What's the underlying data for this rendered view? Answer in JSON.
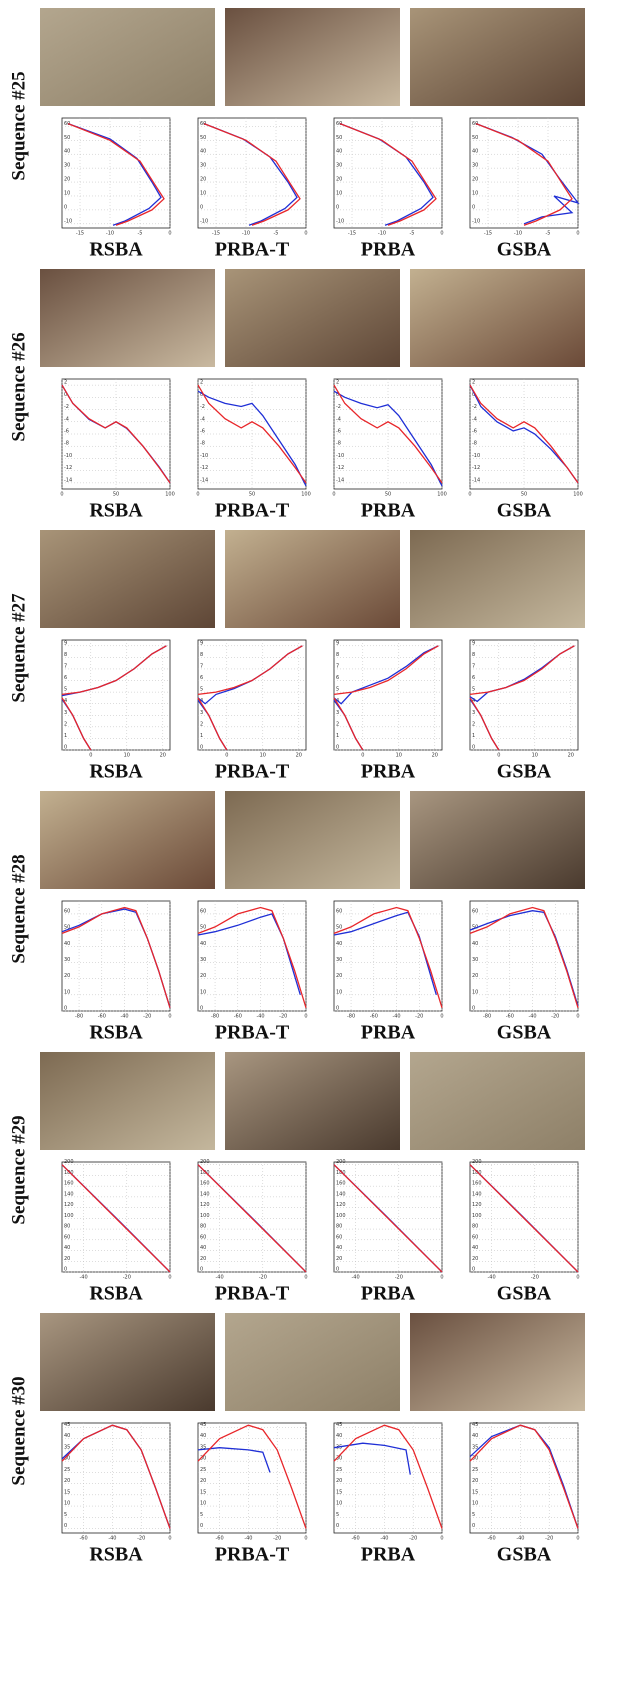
{
  "truth_color": "#e8262a",
  "estimate_color": "#1f2fd6",
  "sequences": [
    {
      "label": "Sequence #25",
      "xlim": [
        -18,
        0
      ],
      "ylim": [
        -13,
        66
      ],
      "xticks": [
        -15,
        -10,
        -5,
        0
      ],
      "yticks": [
        -10,
        0,
        10,
        20,
        30,
        40,
        50,
        60
      ],
      "truth": {
        "x": [
          -17,
          -10,
          -5,
          -2.5,
          -1,
          -3,
          -7,
          -9
        ],
        "y": [
          62,
          50,
          35,
          18,
          8,
          0,
          -8,
          -11
        ]
      },
      "plots": [
        {
          "method": "RSBA",
          "estimate": {
            "x": [
              -17,
              -10,
              -5.5,
              -3,
              -1.5,
              -3.5,
              -7.5,
              -9.5
            ],
            "y": [
              62,
              51,
              37,
              20,
              9,
              1,
              -8,
              -11
            ]
          }
        },
        {
          "method": "PRBA-T",
          "estimate": {
            "x": [
              -17,
              -10.5,
              -6,
              -3,
              -1.5,
              -3.5,
              -7.5,
              -9.5
            ],
            "y": [
              62,
              51,
              38,
              20,
              9,
              1,
              -8,
              -11
            ]
          }
        },
        {
          "method": "PRBA",
          "estimate": {
            "x": [
              -17,
              -10.5,
              -6,
              -3,
              -1.5,
              -3.5,
              -7.5,
              -9.5
            ],
            "y": [
              62,
              51,
              38,
              20,
              9,
              1,
              -8,
              -11
            ]
          }
        },
        {
          "method": "GSBA",
          "estimate": {
            "x": [
              -17,
              -11,
              -6,
              -3,
              0,
              -4,
              -1,
              -6,
              -9
            ],
            "y": [
              62,
              52,
              40,
              22,
              5,
              10,
              -2,
              -5,
              -10
            ]
          }
        }
      ]
    },
    {
      "label": "Sequence #26",
      "xlim": [
        0,
        100
      ],
      "ylim": [
        -15,
        3
      ],
      "xticks": [
        0,
        50,
        100
      ],
      "yticks": [
        -14,
        -12,
        -10,
        -8,
        -6,
        -4,
        -2,
        0,
        2
      ],
      "truth": {
        "x": [
          0,
          10,
          25,
          40,
          50,
          60,
          75,
          90,
          100
        ],
        "y": [
          2,
          -1,
          -3.5,
          -5,
          -4,
          -5,
          -8,
          -11.5,
          -14
        ]
      },
      "plots": [
        {
          "method": "RSBA",
          "estimate": {
            "x": [
              0,
              10,
              25,
              40,
              50,
              60,
              75,
              90,
              100
            ],
            "y": [
              2,
              -1,
              -3.6,
              -5,
              -4,
              -5.1,
              -8,
              -11.4,
              -14
            ]
          }
        },
        {
          "method": "PRBA-T",
          "estimate": {
            "x": [
              0,
              10,
              25,
              40,
              50,
              60,
              75,
              90,
              100
            ],
            "y": [
              1,
              0,
              -1,
              -1.5,
              -1,
              -3,
              -7,
              -11,
              -14.5
            ]
          }
        },
        {
          "method": "PRBA",
          "estimate": {
            "x": [
              0,
              10,
              25,
              40,
              50,
              60,
              75,
              90,
              100
            ],
            "y": [
              1,
              0,
              -1,
              -1.7,
              -1.2,
              -3,
              -7,
              -11,
              -14.5
            ]
          }
        },
        {
          "method": "GSBA",
          "estimate": {
            "x": [
              0,
              10,
              25,
              40,
              50,
              60,
              75,
              90,
              100
            ],
            "y": [
              2,
              -1.5,
              -4,
              -5.5,
              -5,
              -6,
              -8.5,
              -11.5,
              -14
            ]
          }
        }
      ]
    },
    {
      "label": "Sequence #27",
      "xlim": [
        -8,
        22
      ],
      "ylim": [
        0,
        9.5
      ],
      "xticks": [
        0,
        10,
        20
      ],
      "yticks": [
        0,
        1,
        2,
        3,
        4,
        5,
        6,
        7,
        8,
        9
      ],
      "truth": {
        "x": [
          -8,
          -3,
          2,
          7,
          12,
          17,
          21,
          null,
          -8,
          -5,
          -2,
          0
        ],
        "y": [
          4.8,
          5,
          5.4,
          6,
          7,
          8.3,
          9,
          null,
          4.5,
          3,
          1,
          0
        ]
      },
      "plots": [
        {
          "method": "RSBA",
          "estimate": {
            "x": [
              -8,
              -3,
              2,
              7,
              12,
              17,
              21,
              null,
              -8,
              -5,
              -2,
              0
            ],
            "y": [
              4.7,
              5,
              5.4,
              6,
              7,
              8.3,
              9,
              null,
              4.4,
              3,
              1,
              0
            ]
          }
        },
        {
          "method": "PRBA-T",
          "estimate": {
            "x": [
              -8,
              -6,
              -3,
              2,
              7,
              12,
              17,
              21,
              null,
              -8,
              -5,
              -2,
              0
            ],
            "y": [
              4.5,
              4,
              4.8,
              5.3,
              6,
              7,
              8.3,
              9,
              null,
              4.3,
              3,
              1,
              0
            ]
          }
        },
        {
          "method": "PRBA",
          "estimate": {
            "x": [
              -8,
              -6,
              -3,
              2,
              7,
              12,
              17,
              21,
              null,
              -8,
              -5,
              -2,
              0
            ],
            "y": [
              4.5,
              4,
              5,
              5.6,
              6.2,
              7.2,
              8.4,
              9,
              null,
              4.3,
              3,
              1,
              0
            ]
          }
        },
        {
          "method": "GSBA",
          "estimate": {
            "x": [
              -8,
              -6,
              -3,
              2,
              7,
              12,
              17,
              21,
              null,
              -8,
              -5,
              -2,
              0
            ],
            "y": [
              4.6,
              4.2,
              5,
              5.4,
              6.1,
              7.1,
              8.3,
              9,
              null,
              4.4,
              3,
              1,
              0
            ]
          }
        }
      ]
    },
    {
      "label": "Sequence #28",
      "xlim": [
        -95,
        0
      ],
      "ylim": [
        0,
        68
      ],
      "xticks": [
        -80,
        -60,
        -40,
        -20,
        0
      ],
      "yticks": [
        0,
        10,
        20,
        30,
        40,
        50,
        60
      ],
      "truth": {
        "x": [
          -95,
          -80,
          -60,
          -40,
          -30,
          -20,
          -10,
          0
        ],
        "y": [
          48,
          52,
          60,
          64,
          62,
          45,
          25,
          2
        ]
      },
      "plots": [
        {
          "method": "RSBA",
          "estimate": {
            "x": [
              -95,
              -80,
              -60,
              -40,
              -30,
              -20,
              -10,
              0
            ],
            "y": [
              49,
              53,
              60,
              63,
              61,
              45,
              25,
              2
            ]
          }
        },
        {
          "method": "PRBA-T",
          "estimate": {
            "x": [
              -95,
              -80,
              -60,
              -40,
              -30,
              -20,
              -5
            ],
            "y": [
              47,
              49,
              53,
              58,
              60,
              45,
              10
            ]
          }
        },
        {
          "method": "PRBA",
          "estimate": {
            "x": [
              -95,
              -80,
              -60,
              -40,
              -30,
              -20,
              -5
            ],
            "y": [
              47,
              49,
              54,
              59,
              61,
              46,
              10
            ]
          }
        },
        {
          "method": "GSBA",
          "estimate": {
            "x": [
              -95,
              -80,
              -60,
              -40,
              -30,
              -20,
              -10,
              0
            ],
            "y": [
              50,
              54,
              59,
              62,
              61,
              46,
              26,
              3
            ]
          }
        }
      ]
    },
    {
      "label": "Sequence #29",
      "xlim": [
        -50,
        0
      ],
      "ylim": [
        0,
        205
      ],
      "xticks": [
        -40,
        -20,
        0
      ],
      "yticks": [
        0,
        20,
        40,
        60,
        80,
        100,
        120,
        140,
        160,
        180,
        200
      ],
      "truth": {
        "x": [
          -50,
          0
        ],
        "y": [
          200,
          0
        ]
      },
      "plots": [
        {
          "method": "RSBA",
          "estimate": {
            "x": [
              -50,
              -25,
              0
            ],
            "y": [
              200,
              101,
              0
            ]
          }
        },
        {
          "method": "PRBA-T",
          "estimate": {
            "x": [
              -50,
              -25,
              0
            ],
            "y": [
              200,
              101,
              0
            ]
          }
        },
        {
          "method": "PRBA",
          "estimate": {
            "x": [
              -50,
              -25,
              0
            ],
            "y": [
              200,
              101,
              0
            ]
          }
        },
        {
          "method": "GSBA",
          "estimate": {
            "x": [
              -50,
              -25,
              0
            ],
            "y": [
              200,
              101,
              0
            ]
          }
        }
      ]
    },
    {
      "label": "Sequence #30",
      "xlim": [
        -75,
        0
      ],
      "ylim": [
        -2,
        47
      ],
      "xticks": [
        -60,
        -40,
        -20,
        0
      ],
      "yticks": [
        0,
        5,
        10,
        15,
        20,
        25,
        30,
        35,
        40,
        45
      ],
      "truth": {
        "x": [
          -75,
          -60,
          -40,
          -30,
          -20,
          -10,
          0
        ],
        "y": [
          30,
          40,
          46,
          44,
          35,
          18,
          0
        ]
      },
      "plots": [
        {
          "method": "RSBA",
          "estimate": {
            "x": [
              -75,
              -60,
              -40,
              -30,
              -20,
              -10,
              0
            ],
            "y": [
              31,
              40,
              46,
              44,
              35,
              18,
              0
            ]
          }
        },
        {
          "method": "PRBA-T",
          "estimate": {
            "x": [
              -75,
              -60,
              -40,
              -30,
              -25
            ],
            "y": [
              35,
              36,
              35,
              34,
              25
            ]
          }
        },
        {
          "method": "PRBA",
          "estimate": {
            "x": [
              -75,
              -55,
              -40,
              -25,
              -22
            ],
            "y": [
              36,
              38,
              37,
              35,
              24
            ]
          }
        },
        {
          "method": "GSBA",
          "estimate": {
            "x": [
              -75,
              -60,
              -40,
              -30,
              -20,
              -10,
              0
            ],
            "y": [
              32,
              41,
              46,
              44,
              36,
              19,
              0
            ]
          }
        }
      ]
    }
  ]
}
